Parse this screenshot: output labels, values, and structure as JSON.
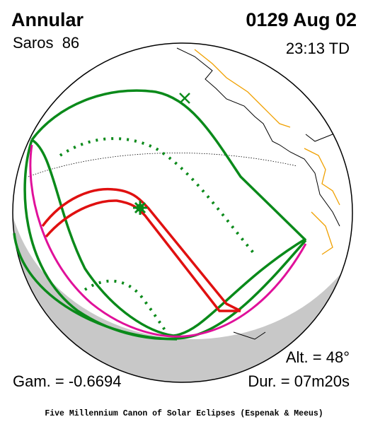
{
  "header": {
    "eclipse_type": "Annular",
    "saros": "Saros  86",
    "date": "0129 Aug 02",
    "time": "23:13 TD"
  },
  "stats": {
    "altitude": "Alt. = 48°",
    "gamma": "Gam. = -0.6694",
    "duration": "Dur. = 07m20s"
  },
  "footer": {
    "credit": "Five Millennium Canon of Solar Eclipses (Espenak & Meeus)"
  }
}
